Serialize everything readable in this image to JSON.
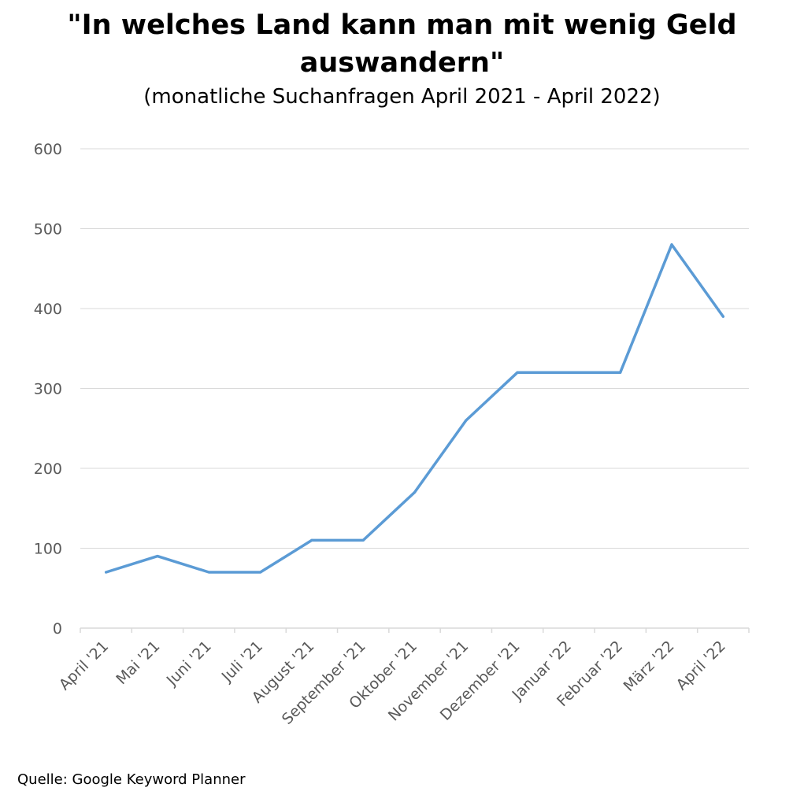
{
  "chart_data": {
    "type": "line",
    "title_line1": "\"In welches Land kann man mit wenig Geld",
    "title_line2": "auswandern\"",
    "subtitle": "(monatliche Suchanfragen April 2021 - April 2022)",
    "categories": [
      "April '21",
      "Mai '21",
      "Juni '21",
      "Juli '21",
      "August '21",
      "September '21",
      "Oktober '21",
      "November '21",
      "Dezember '21",
      "Januar '22",
      "Februar '22",
      "März '22",
      "April '22"
    ],
    "series": [
      {
        "values": [
          70,
          90,
          70,
          70,
          110,
          110,
          170,
          260,
          320,
          320,
          320,
          480,
          390
        ]
      }
    ],
    "ylim": [
      0,
      600
    ],
    "yticks": [
      0,
      100,
      200,
      300,
      400,
      500,
      600
    ],
    "grid": true,
    "line_color": "#5b9bd5",
    "grid_color": "#d9d9d9",
    "tick_label_color": "#595959"
  },
  "source": "Quelle: Google Keyword Planner"
}
